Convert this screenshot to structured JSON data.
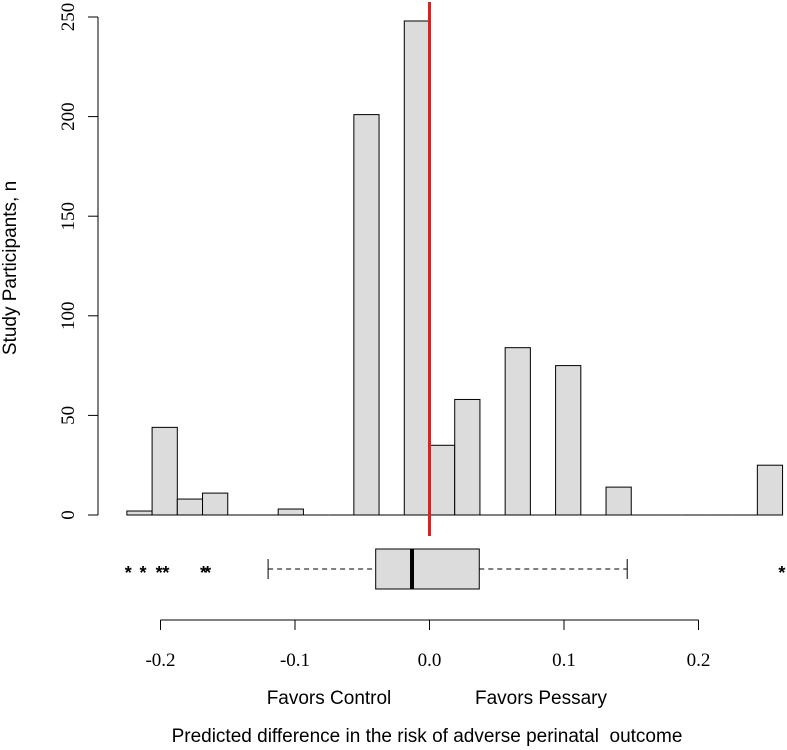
{
  "chart_data": {
    "type": "bar",
    "subtype": "histogram-with-boxplot",
    "title": "",
    "ylabel": "Study Participants, n",
    "xlabel": "Predicted difference in the risk of adverse perinatal  outcome",
    "side_label_left": "Favors Control",
    "side_label_right": "Favors Pessary",
    "xlim": [
      -0.225,
      0.26
    ],
    "ylim": [
      0,
      250
    ],
    "yticks": [
      0,
      50,
      100,
      150,
      200,
      250
    ],
    "ytick_labels": [
      "0",
      "50",
      "100",
      "150",
      "200",
      "250"
    ],
    "xticks": [
      -0.2,
      -0.1,
      0.0,
      0.1,
      0.2
    ],
    "xtick_labels": [
      "-0.2",
      "-0.1",
      "0.0",
      "0.1",
      "0.2"
    ],
    "bin_width": 0.01875,
    "bins": [
      {
        "start": -0.225,
        "end": -0.20625,
        "count": 2
      },
      {
        "start": -0.20625,
        "end": -0.1875,
        "count": 44
      },
      {
        "start": -0.1875,
        "end": -0.16875,
        "count": 8
      },
      {
        "start": -0.16875,
        "end": -0.15,
        "count": 11
      },
      {
        "start": -0.15,
        "end": -0.13125,
        "count": 0
      },
      {
        "start": -0.13125,
        "end": -0.1125,
        "count": 0
      },
      {
        "start": -0.1125,
        "end": -0.09375,
        "count": 3
      },
      {
        "start": -0.09375,
        "end": -0.075,
        "count": 0
      },
      {
        "start": -0.075,
        "end": -0.05625,
        "count": 0
      },
      {
        "start": -0.05625,
        "end": -0.0375,
        "count": 201
      },
      {
        "start": -0.0375,
        "end": -0.01875,
        "count": 0
      },
      {
        "start": -0.01875,
        "end": 0.0,
        "count": 248
      },
      {
        "start": 0.0,
        "end": 0.01875,
        "count": 35
      },
      {
        "start": 0.01875,
        "end": 0.0375,
        "count": 58
      },
      {
        "start": 0.0375,
        "end": 0.05625,
        "count": 0
      },
      {
        "start": 0.05625,
        "end": 0.075,
        "count": 84
      },
      {
        "start": 0.075,
        "end": 0.09375,
        "count": 0
      },
      {
        "start": 0.09375,
        "end": 0.1125,
        "count": 75
      },
      {
        "start": 0.1125,
        "end": 0.13125,
        "count": 0
      },
      {
        "start": 0.13125,
        "end": 0.15,
        "count": 14
      },
      {
        "start": 0.15,
        "end": 0.16875,
        "count": 0
      },
      {
        "start": 0.16875,
        "end": 0.1875,
        "count": 0
      },
      {
        "start": 0.1875,
        "end": 0.20625,
        "count": 0
      },
      {
        "start": 0.20625,
        "end": 0.225,
        "count": 0
      },
      {
        "start": 0.225,
        "end": 0.24375,
        "count": 0
      },
      {
        "start": 0.24375,
        "end": 0.2625,
        "count": 25
      }
    ],
    "reference_line": {
      "x": 0.0,
      "color": "#e0201b"
    },
    "boxplot": {
      "whisker_low": -0.12,
      "q1": -0.04,
      "median": -0.013,
      "q3": 0.037,
      "whisker_high": 0.147,
      "outliers": [
        -0.224,
        -0.213,
        -0.201,
        -0.196,
        -0.168,
        -0.165,
        0.262
      ],
      "outlier_symbol": "*"
    },
    "bar_fill": "#dcdcdc",
    "bar_stroke": "#000000",
    "grid": false,
    "legend": "none"
  }
}
